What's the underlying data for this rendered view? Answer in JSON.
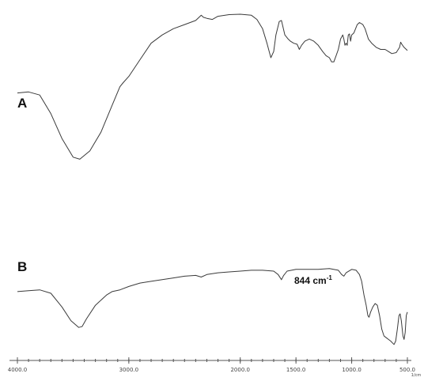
{
  "chart_data": {
    "type": "line",
    "x_unit": "1/cm",
    "x_ticks": [
      "4000.0",
      "3000.0",
      "2000.0",
      "1500.0",
      "1000.0",
      "500.0"
    ],
    "x_tick_values": [
      4000,
      3000,
      2000,
      1500,
      1000,
      500
    ],
    "xlim": [
      4000,
      500
    ],
    "ylim": [
      0,
      1
    ],
    "grid": false,
    "annotation": {
      "text": "844 cm",
      "superscript": "-1",
      "x": 844
    },
    "series": [
      {
        "name": "A",
        "points": [
          [
            4000,
            0.62
          ],
          [
            3900,
            0.625
          ],
          [
            3800,
            0.61
          ],
          [
            3700,
            0.52
          ],
          [
            3600,
            0.4
          ],
          [
            3500,
            0.31
          ],
          [
            3440,
            0.3
          ],
          [
            3350,
            0.34
          ],
          [
            3250,
            0.43
          ],
          [
            3150,
            0.56
          ],
          [
            3080,
            0.65
          ],
          [
            3050,
            0.67
          ],
          [
            3000,
            0.7
          ],
          [
            2900,
            0.78
          ],
          [
            2800,
            0.86
          ],
          [
            2700,
            0.9
          ],
          [
            2600,
            0.93
          ],
          [
            2500,
            0.95
          ],
          [
            2400,
            0.97
          ],
          [
            2350,
            0.995
          ],
          [
            2330,
            0.985
          ],
          [
            2300,
            0.98
          ],
          [
            2250,
            0.975
          ],
          [
            2200,
            0.99
          ],
          [
            2100,
            0.998
          ],
          [
            2000,
            1.0
          ],
          [
            1900,
            0.995
          ],
          [
            1850,
            0.975
          ],
          [
            1800,
            0.93
          ],
          [
            1760,
            0.86
          ],
          [
            1725,
            0.79
          ],
          [
            1700,
            0.82
          ],
          [
            1680,
            0.9
          ],
          [
            1650,
            0.965
          ],
          [
            1630,
            0.97
          ],
          [
            1600,
            0.9
          ],
          [
            1570,
            0.88
          ],
          [
            1550,
            0.87
          ],
          [
            1520,
            0.86
          ],
          [
            1490,
            0.855
          ],
          [
            1470,
            0.83
          ],
          [
            1450,
            0.85
          ],
          [
            1420,
            0.87
          ],
          [
            1380,
            0.88
          ],
          [
            1340,
            0.87
          ],
          [
            1300,
            0.85
          ],
          [
            1260,
            0.82
          ],
          [
            1230,
            0.8
          ],
          [
            1200,
            0.79
          ],
          [
            1180,
            0.77
          ],
          [
            1160,
            0.77
          ],
          [
            1140,
            0.8
          ],
          [
            1120,
            0.83
          ],
          [
            1100,
            0.88
          ],
          [
            1080,
            0.9
          ],
          [
            1070,
            0.88
          ],
          [
            1060,
            0.85
          ],
          [
            1050,
            0.86
          ],
          [
            1040,
            0.85
          ],
          [
            1030,
            0.9
          ],
          [
            1020,
            0.905
          ],
          [
            1010,
            0.87
          ],
          [
            1000,
            0.9
          ],
          [
            980,
            0.91
          ],
          [
            950,
            0.95
          ],
          [
            930,
            0.96
          ],
          [
            900,
            0.95
          ],
          [
            880,
            0.93
          ],
          [
            850,
            0.88
          ],
          [
            820,
            0.86
          ],
          [
            780,
            0.84
          ],
          [
            740,
            0.83
          ],
          [
            700,
            0.83
          ],
          [
            670,
            0.82
          ],
          [
            640,
            0.81
          ],
          [
            600,
            0.815
          ],
          [
            570,
            0.84
          ],
          [
            560,
            0.865
          ],
          [
            550,
            0.855
          ],
          [
            530,
            0.84
          ],
          [
            510,
            0.83
          ],
          [
            500,
            0.825
          ]
        ]
      },
      {
        "name": "B",
        "points": [
          [
            4000,
            0.32
          ],
          [
            3900,
            0.325
          ],
          [
            3800,
            0.33
          ],
          [
            3700,
            0.31
          ],
          [
            3600,
            0.23
          ],
          [
            3520,
            0.15
          ],
          [
            3450,
            0.11
          ],
          [
            3420,
            0.115
          ],
          [
            3380,
            0.16
          ],
          [
            3300,
            0.24
          ],
          [
            3200,
            0.3
          ],
          [
            3150,
            0.32
          ],
          [
            3080,
            0.33
          ],
          [
            3000,
            0.35
          ],
          [
            2900,
            0.37
          ],
          [
            2800,
            0.38
          ],
          [
            2700,
            0.39
          ],
          [
            2600,
            0.4
          ],
          [
            2500,
            0.41
          ],
          [
            2400,
            0.415
          ],
          [
            2350,
            0.405
          ],
          [
            2300,
            0.42
          ],
          [
            2200,
            0.43
          ],
          [
            2100,
            0.435
          ],
          [
            2000,
            0.44
          ],
          [
            1900,
            0.445
          ],
          [
            1800,
            0.445
          ],
          [
            1700,
            0.44
          ],
          [
            1660,
            0.42
          ],
          [
            1630,
            0.39
          ],
          [
            1610,
            0.415
          ],
          [
            1580,
            0.44
          ],
          [
            1500,
            0.45
          ],
          [
            1400,
            0.45
          ],
          [
            1300,
            0.45
          ],
          [
            1200,
            0.455
          ],
          [
            1120,
            0.445
          ],
          [
            1090,
            0.42
          ],
          [
            1070,
            0.41
          ],
          [
            1050,
            0.43
          ],
          [
            1000,
            0.45
          ],
          [
            960,
            0.445
          ],
          [
            930,
            0.42
          ],
          [
            910,
            0.38
          ],
          [
            890,
            0.3
          ],
          [
            870,
            0.24
          ],
          [
            855,
            0.18
          ],
          [
            844,
            0.17
          ],
          [
            830,
            0.2
          ],
          [
            810,
            0.23
          ],
          [
            790,
            0.25
          ],
          [
            770,
            0.24
          ],
          [
            750,
            0.18
          ],
          [
            730,
            0.1
          ],
          [
            710,
            0.06
          ],
          [
            690,
            0.05
          ],
          [
            670,
            0.04
          ],
          [
            650,
            0.03
          ],
          [
            635,
            0.02
          ],
          [
            620,
            0.01
          ],
          [
            605,
            0.03
          ],
          [
            590,
            0.1
          ],
          [
            575,
            0.18
          ],
          [
            565,
            0.19
          ],
          [
            555,
            0.15
          ],
          [
            540,
            0.06
          ],
          [
            530,
            0.04
          ],
          [
            520,
            0.08
          ],
          [
            510,
            0.18
          ],
          [
            500,
            0.2
          ]
        ]
      }
    ]
  }
}
